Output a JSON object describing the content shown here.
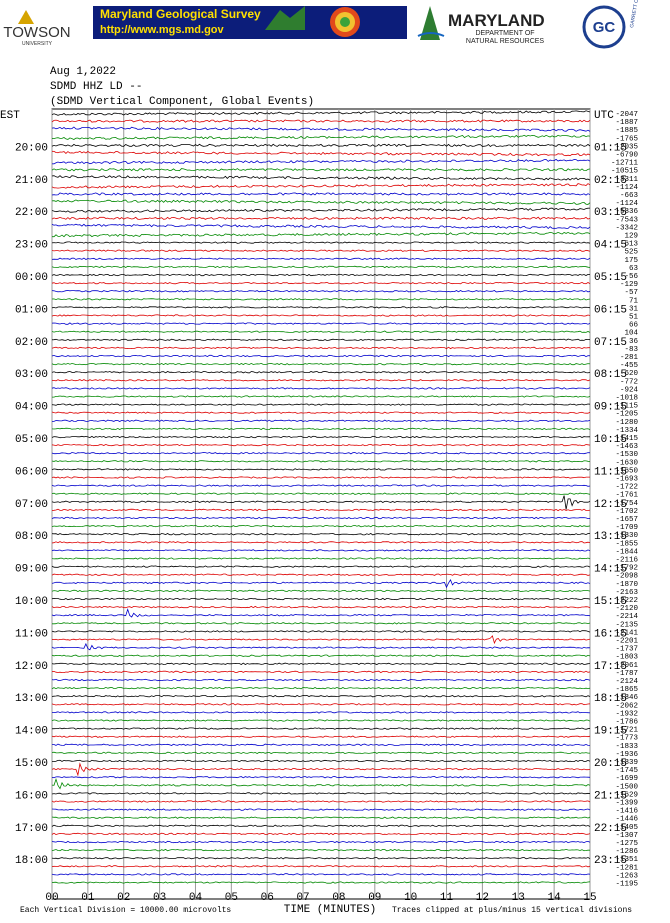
{
  "header": {
    "towson": "TOWSON",
    "towson_sub": "UNIVERSITY",
    "mgs_title": "Maryland Geological Survey",
    "mgs_url": "http://www.mgs.md.gov",
    "dnr_title": "MARYLAND",
    "dnr_sub1": "DEPARTMENT OF",
    "dnr_sub2": "NATURAL RESOURCES",
    "garrett": "GC",
    "garrett_sub": "GARRETT COLLEGE"
  },
  "plot": {
    "date": "Aug 1,2022",
    "station": "SDMD HHZ LD --",
    "component": "(SDMD Vertical Component, Global Events)",
    "left_labels": [
      "EST",
      "20:00",
      "21:00",
      "22:00",
      "23:00",
      "00:00",
      "01:00",
      "02:00",
      "03:00",
      "04:00",
      "05:00",
      "06:00",
      "07:00",
      "08:00",
      "09:00",
      "10:00",
      "11:00",
      "12:00",
      "13:00",
      "14:00",
      "15:00",
      "16:00",
      "17:00",
      "18:00"
    ],
    "right_labels": [
      "UTC",
      "01:15",
      "02:15",
      "03:15",
      "04:15",
      "05:15",
      "06:15",
      "07:15",
      "08:15",
      "09:15",
      "10:15",
      "11:15",
      "12:15",
      "13:15",
      "14:15",
      "15:15",
      "16:15",
      "17:15",
      "18:15",
      "19:15",
      "20:15",
      "21:15",
      "22:15",
      "23:15"
    ],
    "offsets": [
      -2047,
      -1887,
      -1885,
      -1765,
      -2035,
      -6790,
      -12711,
      -10515,
      -3311,
      -1124,
      -663,
      -1124,
      -5836,
      -7543,
      -3342,
      129,
      613,
      525,
      175,
      63,
      -56,
      -129,
      -57,
      71,
      31,
      51,
      66,
      104,
      36,
      -83,
      -281,
      -455,
      -620,
      -772,
      -924,
      -1018,
      -1115,
      -1205,
      -1280,
      -1334,
      -1415,
      -1463,
      -1530,
      -1630,
      -1650,
      -1693,
      -1722,
      -1761,
      -1754,
      -1702,
      -1657,
      -1709,
      -1830,
      -1855,
      -1844,
      -2116,
      -1792,
      -2098,
      -1870,
      -2163,
      -2222,
      -2120,
      -2214,
      -2135,
      -2141,
      -2201,
      -1737,
      -1803,
      -2061,
      -1787,
      -2124,
      -1865,
      -1846,
      -2062,
      -1932,
      -1786,
      -1721,
      -1773,
      -1833,
      -1936,
      -1839,
      -1745,
      -1699,
      -1500,
      -1629,
      -1399,
      -1416,
      -1446,
      -1405,
      -1307,
      -1275,
      -1286,
      -1351,
      -1281,
      -1263,
      -1195
    ],
    "x_ticks": [
      "00",
      "01",
      "02",
      "03",
      "04",
      "05",
      "06",
      "07",
      "08",
      "09",
      "10",
      "11",
      "12",
      "13",
      "14",
      "15"
    ],
    "x_label": "TIME (MINUTES)"
  },
  "footer": {
    "left": "Each Vertical Division = 10000.00 microvolts",
    "right": "Traces clipped at plus/minus 15 vertical divisions"
  }
}
